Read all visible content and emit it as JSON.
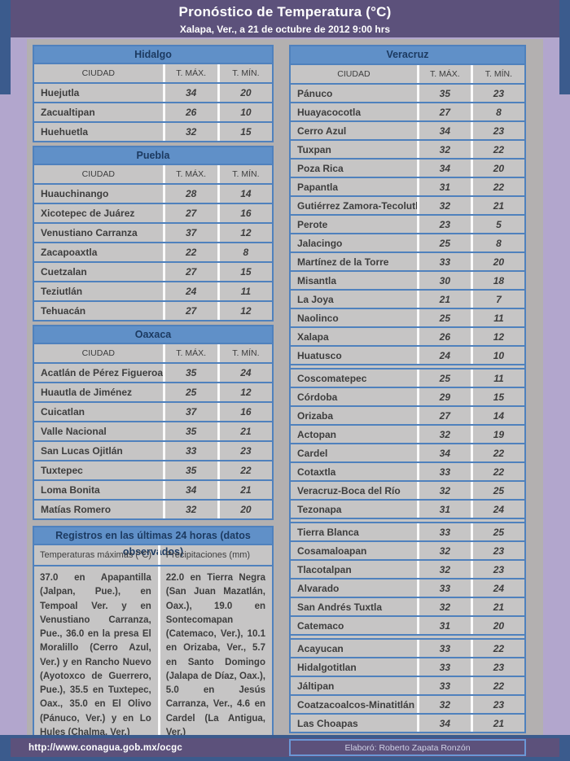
{
  "header": {
    "title": "Pronóstico de Temperatura (°C)",
    "subtitle": "Xalapa, Ver., a 21 de octubre de 2012  9:00 hrs"
  },
  "columns": {
    "city": "CIUDAD",
    "tmax": "T. MÁX.",
    "tmin": "T. MÍN."
  },
  "tables": [
    {
      "state": "Hidalgo",
      "rows": [
        [
          "Huejutla",
          "34",
          "20"
        ],
        [
          "Zacualtipan",
          "26",
          "10"
        ],
        [
          "Huehuetla",
          "32",
          "15"
        ]
      ]
    },
    {
      "state": "Puebla",
      "rows": [
        [
          "Huauchinango",
          "28",
          "14"
        ],
        [
          "Xicotepec de Juárez",
          "27",
          "16"
        ],
        [
          "Venustiano Carranza",
          "37",
          "12"
        ],
        [
          "Zacapoaxtla",
          "22",
          "8"
        ],
        [
          "Cuetzalan",
          "27",
          "15"
        ],
        [
          "Teziutlán",
          "24",
          "11"
        ],
        [
          "Tehuacán",
          "27",
          "12"
        ]
      ]
    },
    {
      "state": "Oaxaca",
      "rows": [
        [
          "Acatlán de Pérez Figueroa",
          "35",
          "24"
        ],
        [
          "Huautla de Jiménez",
          "25",
          "12"
        ],
        [
          "Cuicatlan",
          "37",
          "16"
        ],
        [
          "Valle Nacional",
          "35",
          "21"
        ],
        [
          "San Lucas Ojitlán",
          "33",
          "23"
        ],
        [
          "Tuxtepec",
          "35",
          "22"
        ],
        [
          "Loma Bonita",
          "34",
          "21"
        ],
        [
          "Matías Romero",
          "32",
          "20"
        ]
      ]
    },
    {
      "state": "Veracruz",
      "groups": [
        [
          [
            "Pánuco",
            "35",
            "23"
          ],
          [
            "Huayacocotla",
            "27",
            "8"
          ],
          [
            "Cerro Azul",
            "34",
            "23"
          ],
          [
            "Tuxpan",
            "32",
            "22"
          ],
          [
            "Poza Rica",
            "34",
            "20"
          ],
          [
            "Papantla",
            "31",
            "22"
          ],
          [
            "Gutiérrez Zamora-Tecolutla",
            "32",
            "21"
          ],
          [
            "Perote",
            "23",
            "5"
          ],
          [
            "Jalacingo",
            "25",
            "8"
          ],
          [
            "Martínez de la Torre",
            "33",
            "20"
          ],
          [
            "Misantla",
            "30",
            "18"
          ],
          [
            "La Joya",
            "21",
            "7"
          ],
          [
            "Naolinco",
            "25",
            "11"
          ],
          [
            "Xalapa",
            "26",
            "12"
          ],
          [
            "Huatusco",
            "24",
            "10"
          ]
        ],
        [
          [
            "Coscomatepec",
            "25",
            "11"
          ],
          [
            "Córdoba",
            "29",
            "15"
          ],
          [
            "Orizaba",
            "27",
            "14"
          ],
          [
            "Actopan",
            "32",
            "19"
          ],
          [
            "Cardel",
            "34",
            "22"
          ],
          [
            "Cotaxtla",
            "33",
            "22"
          ],
          [
            "Veracruz-Boca del Río",
            "32",
            "25"
          ],
          [
            "Tezonapa",
            "31",
            "24"
          ]
        ],
        [
          [
            "Tierra Blanca",
            "33",
            "25"
          ],
          [
            "Cosamaloapan",
            "32",
            "23"
          ],
          [
            "Tlacotalpan",
            "32",
            "23"
          ],
          [
            "Alvarado",
            "33",
            "24"
          ],
          [
            "San Andrés Tuxtla",
            "32",
            "21"
          ],
          [
            "Catemaco",
            "31",
            "20"
          ]
        ],
        [
          [
            "Acayucan",
            "33",
            "22"
          ],
          [
            "Hidalgotitlan",
            "33",
            "23"
          ],
          [
            "Jáltipan",
            "33",
            "22"
          ],
          [
            "Coatzacoalcos-Minatitlán",
            "32",
            "23"
          ],
          [
            "Las Choapas",
            "34",
            "21"
          ]
        ]
      ]
    }
  ],
  "records": {
    "title": "Registros en las últimas 24 horas (datos observados)",
    "col1_header": "Temperaturas máximas (°C)",
    "col2_header": "Precipitaciones (mm)",
    "col1_text": "37.0 en Apapantilla (Jalpan, Pue.), en Tempoal Ver. y en Venustiano Carranza, Pue., 36.0 en la presa El Moralillo (Cerro Azul, Ver.) y en Rancho Nuevo (Ayotoxco de Guerrero, Pue.), 35.5 en Tuxtepec, Oax., 35.0 en El Olivo (Pánuco, Ver.) y en Lo Hules (Chalma, Ver.)",
    "col2_text": "22.0 en Tierra Negra (San Juan Mazatlán, Oax.), 19.0 en Sontecomapan (Catemaco, Ver.), 10.1 en Orizaba, Ver., 5.7 en Santo Domingo (Jalapa de Díaz, Oax.), 5.0 en Jesús Carranza, Ver., 4.6 en Cardel (La Antigua, Ver.)"
  },
  "footer": {
    "url": "http://www.conagua.gob.mx/ocgc",
    "credit": "Elaboró: Roberto Zapata Ronzón"
  },
  "colors": {
    "table_border_blue": "#4f81bd",
    "state_header_blue": "#6090c8",
    "state_header_text_navy": "#1c3a61",
    "row_gray": "#c6c5c5",
    "panel_gray": "#b3b0b0",
    "page_lavender": "#b2a6cd",
    "banner_purple": "#5c517b",
    "edge_dark_blue": "#3b5b8d",
    "text_ink": "#3d3d3d"
  }
}
